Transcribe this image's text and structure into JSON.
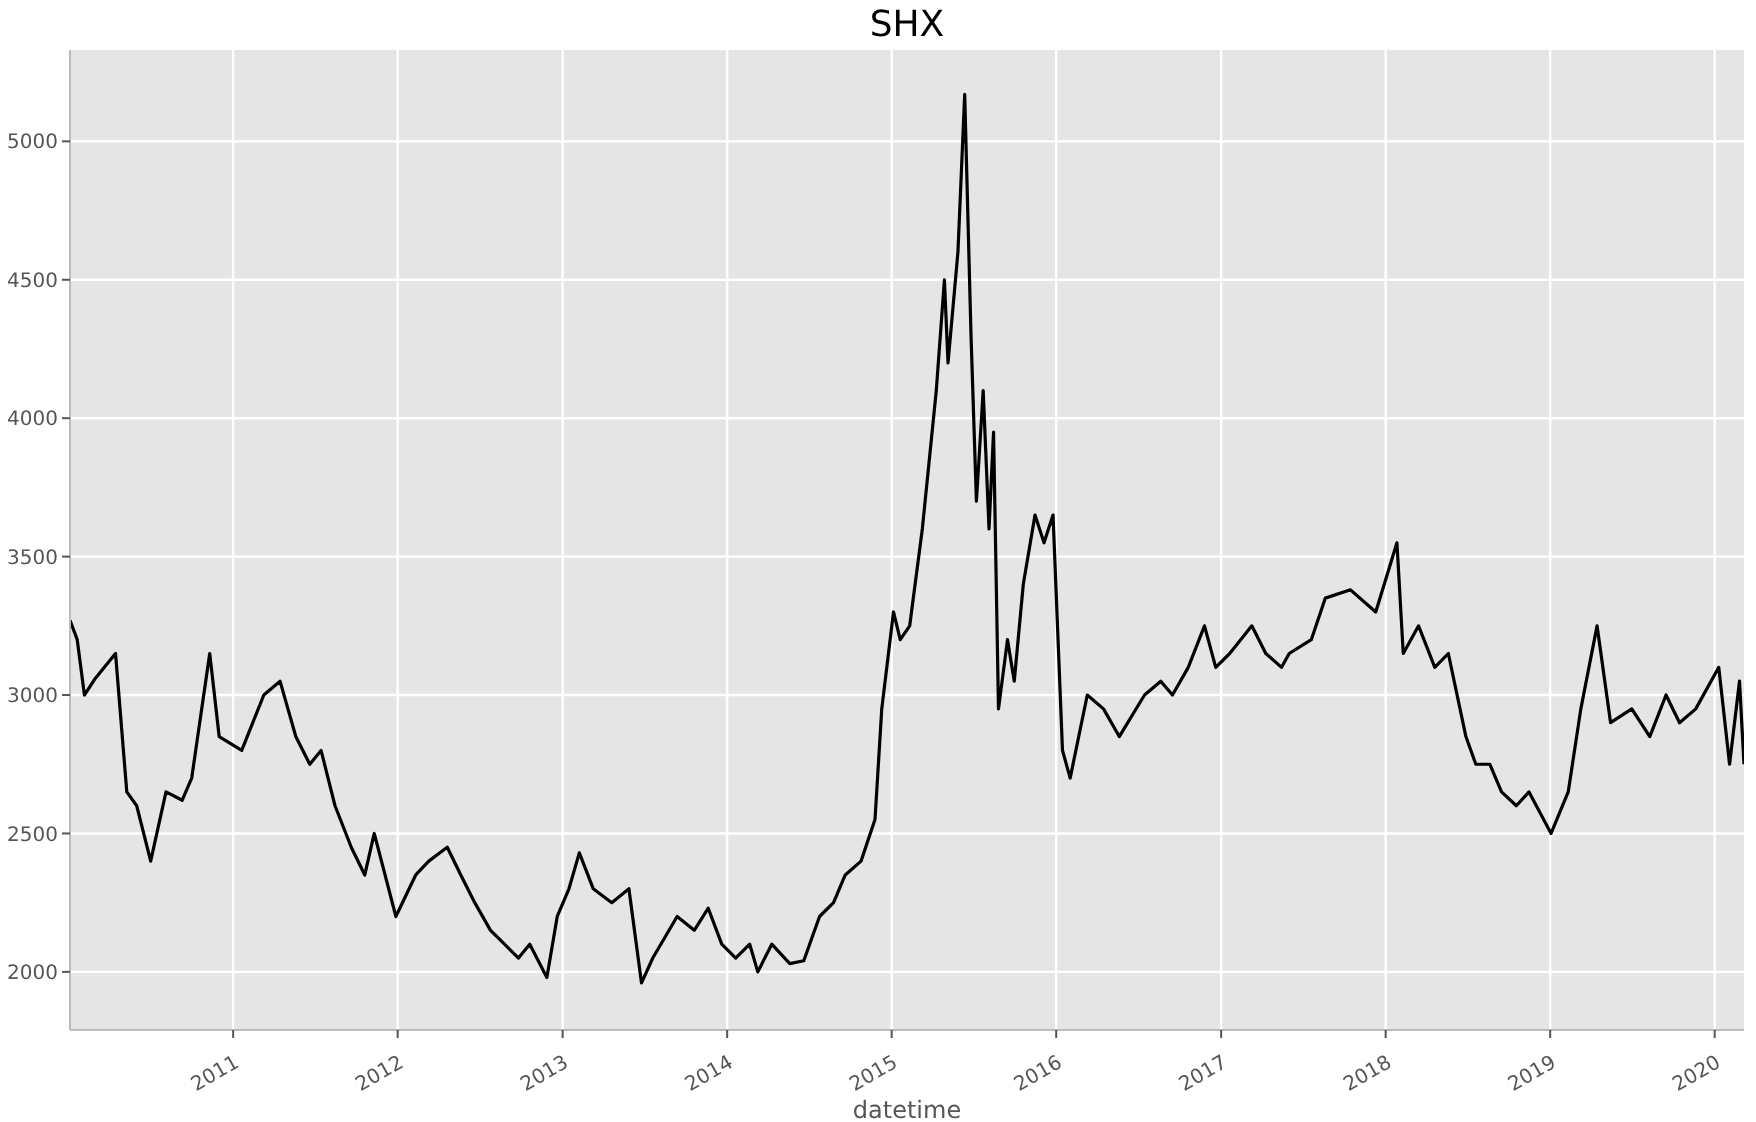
{
  "chart_data": {
    "type": "line",
    "title": "SHX",
    "xlabel": "datetime",
    "x": [
      "2010-01-04",
      "2010-01-20",
      "2010-02-05",
      "2010-03-01",
      "2010-04-15",
      "2010-05-10",
      "2010-06-01",
      "2010-07-02",
      "2010-08-05",
      "2010-09-10",
      "2010-10-01",
      "2010-11-10",
      "2010-12-01",
      "2011-01-20",
      "2011-03-10",
      "2011-04-15",
      "2011-05-20",
      "2011-06-20",
      "2011-07-15",
      "2011-08-15",
      "2011-09-20",
      "2011-10-20",
      "2011-11-10",
      "2011-12-28",
      "2012-02-10",
      "2012-03-10",
      "2012-04-20",
      "2012-05-20",
      "2012-06-20",
      "2012-07-25",
      "2012-08-25",
      "2012-09-25",
      "2012-10-20",
      "2012-11-27",
      "2012-12-20",
      "2013-01-15",
      "2013-02-07",
      "2013-03-10",
      "2013-04-20",
      "2013-05-28",
      "2013-06-25",
      "2013-07-20",
      "2013-09-12",
      "2013-10-20",
      "2013-11-20",
      "2013-12-20",
      "2014-01-20",
      "2014-02-20",
      "2014-03-10",
      "2014-04-10",
      "2014-05-20",
      "2014-06-20",
      "2014-07-25",
      "2014-08-25",
      "2014-09-20",
      "2014-10-25",
      "2014-11-25",
      "2014-12-10",
      "2015-01-05",
      "2015-01-20",
      "2015-02-10",
      "2015-03-10",
      "2015-04-10",
      "2015-04-28",
      "2015-05-06",
      "2015-05-28",
      "2015-06-12",
      "2015-06-26",
      "2015-07-08",
      "2015-07-23",
      "2015-08-05",
      "2015-08-15",
      "2015-08-26",
      "2015-09-15",
      "2015-09-30",
      "2015-10-20",
      "2015-11-15",
      "2015-12-05",
      "2015-12-25",
      "2016-01-15",
      "2016-02-01",
      "2016-03-10",
      "2016-04-15",
      "2016-05-20",
      "2016-07-15",
      "2016-08-20",
      "2016-09-15",
      "2016-10-20",
      "2016-11-25",
      "2016-12-20",
      "2017-01-20",
      "2017-03-10",
      "2017-04-10",
      "2017-05-15",
      "2017-06-01",
      "2017-07-20",
      "2017-08-20",
      "2017-10-15",
      "2017-12-10",
      "2018-01-26",
      "2018-02-09",
      "2018-03-15",
      "2018-04-20",
      "2018-05-20",
      "2018-06-28",
      "2018-07-20",
      "2018-08-20",
      "2018-09-15",
      "2018-10-18",
      "2018-11-15",
      "2019-01-03",
      "2019-02-10",
      "2019-03-10",
      "2019-04-15",
      "2019-05-15",
      "2019-07-01",
      "2019-08-10",
      "2019-09-15",
      "2019-10-15",
      "2019-11-20",
      "2020-01-10",
      "2020-02-03",
      "2020-02-25",
      "2020-03-06"
    ],
    "series": [
      {
        "color": "#000000",
        "values": [
          3270,
          3200,
          3000,
          3060,
          3150,
          2650,
          2600,
          2400,
          2650,
          2620,
          2700,
          3150,
          2850,
          2800,
          3000,
          3050,
          2850,
          2750,
          2800,
          2600,
          2450,
          2350,
          2500,
          2200,
          2350,
          2400,
          2450,
          2350,
          2250,
          2150,
          2100,
          2050,
          2100,
          1980,
          2200,
          2300,
          2430,
          2300,
          2250,
          2300,
          1960,
          2050,
          2200,
          2150,
          2230,
          2100,
          2050,
          2100,
          2000,
          2100,
          2030,
          2040,
          2200,
          2250,
          2350,
          2400,
          2550,
          2950,
          3300,
          3200,
          3250,
          3600,
          4100,
          4500,
          4200,
          4600,
          5170,
          4300,
          3700,
          4100,
          3600,
          3950,
          2950,
          3200,
          3050,
          3400,
          3650,
          3550,
          3650,
          2800,
          2700,
          3000,
          2950,
          2850,
          3000,
          3050,
          3000,
          3100,
          3250,
          3100,
          3150,
          3250,
          3150,
          3100,
          3150,
          3200,
          3350,
          3380,
          3300,
          3550,
          3150,
          3250,
          3100,
          3150,
          2850,
          2750,
          2750,
          2650,
          2600,
          2650,
          2500,
          2650,
          2950,
          3250,
          2900,
          2950,
          2850,
          3000,
          2900,
          2950,
          3100,
          2750,
          3050,
          2750
        ]
      }
    ],
    "xlim": [
      "2010-01-04",
      "2020-03-06"
    ],
    "xticks": [
      "2011",
      "2012",
      "2013",
      "2014",
      "2015",
      "2016",
      "2017",
      "2018",
      "2019",
      "2020"
    ],
    "ylim": [
      1790,
      5330
    ],
    "yticks": [
      2000,
      2500,
      3000,
      3500,
      4000,
      4500,
      5000
    ],
    "grid": true,
    "legend": false
  }
}
